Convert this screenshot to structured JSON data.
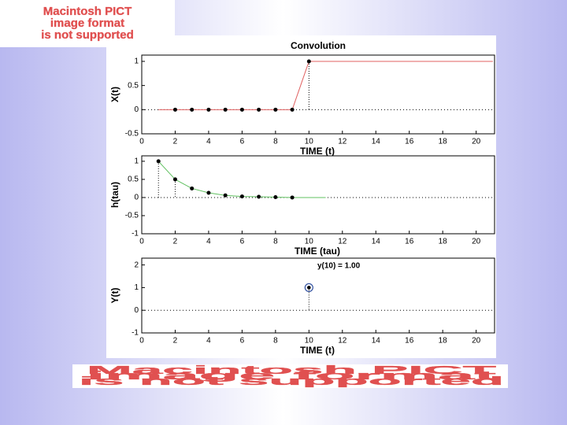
{
  "chart_data": [
    {
      "type": "line",
      "title": "Convolution",
      "ylabel": "X(t)",
      "xlabel": "TIME (t)",
      "xlim": [
        0,
        21.1
      ],
      "ylim": [
        -0.5,
        1.13
      ],
      "xticks": [
        0,
        2,
        4,
        6,
        8,
        10,
        12,
        14,
        16,
        18,
        20
      ],
      "yticks": [
        -0.5,
        0,
        0.5,
        1
      ],
      "zero_line": true,
      "series": [
        {
          "color": "#e06060",
          "x": [
            1,
            9,
            10,
            21
          ],
          "values": [
            0,
            0,
            1,
            1
          ]
        },
        {
          "color": "#000000",
          "marker": "dot",
          "x": [
            2,
            3,
            4,
            5,
            6,
            7,
            8,
            9,
            10
          ],
          "values": [
            0,
            0,
            0,
            0,
            0,
            0,
            0,
            0,
            1
          ]
        },
        {
          "color": "#000000",
          "marker": "stem",
          "x": [
            10
          ],
          "values": [
            1
          ]
        }
      ]
    },
    {
      "type": "line",
      "ylabel": "h(tau)",
      "xlabel": "TIME (tau)",
      "xlim": [
        0,
        21.1
      ],
      "ylim": [
        -1,
        1.15
      ],
      "xticks": [
        0,
        2,
        4,
        6,
        8,
        10,
        12,
        14,
        16,
        18,
        20
      ],
      "yticks": [
        -1,
        -0.5,
        0,
        0.5,
        1
      ],
      "zero_line": true,
      "series": [
        {
          "color": "#60c060",
          "x": [
            1,
            2,
            3,
            4,
            5,
            6,
            7,
            8,
            9,
            10,
            11
          ],
          "values": [
            1,
            0.5,
            0.25,
            0.13,
            0.06,
            0.03,
            0.02,
            0.01,
            0,
            0,
            0
          ]
        },
        {
          "color": "#000000",
          "marker": "dot",
          "x": [
            1,
            2,
            3,
            4,
            5,
            6,
            7,
            8,
            9
          ],
          "values": [
            1,
            0.5,
            0.25,
            0.13,
            0.06,
            0.03,
            0.02,
            0.01,
            0
          ]
        },
        {
          "color": "#000000",
          "marker": "stem",
          "x": [
            1,
            2
          ],
          "values": [
            1,
            0.5
          ]
        }
      ]
    },
    {
      "type": "line",
      "ylabel": "Y(t)",
      "xlabel": "TIME (t)",
      "annotation": "y(10) = 1.00",
      "xlim": [
        0,
        21.1
      ],
      "ylim": [
        -1,
        2.3
      ],
      "xticks": [
        0,
        2,
        4,
        6,
        8,
        10,
        12,
        14,
        16,
        18,
        20
      ],
      "yticks": [
        -1,
        0,
        1,
        2
      ],
      "zero_line": true,
      "series": [
        {
          "color": "#000000",
          "marker": "circled",
          "x": [
            10
          ],
          "values": [
            1
          ]
        },
        {
          "color": "#000000",
          "marker": "stem",
          "x": [
            10
          ],
          "values": [
            1
          ]
        }
      ]
    }
  ],
  "placeholders": [
    {
      "lines": [
        "Macintosh PICT",
        "image format",
        "is not supported"
      ]
    },
    {
      "lines": [
        "Macintosh PICT",
        "image format",
        "is not supported"
      ]
    }
  ]
}
